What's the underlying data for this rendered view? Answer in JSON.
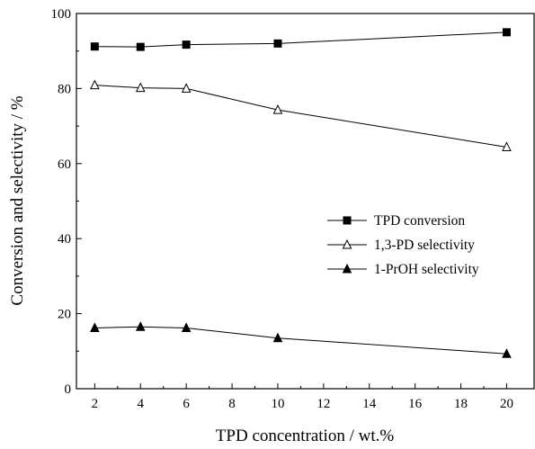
{
  "chart_data": {
    "type": "line",
    "title": "",
    "xlabel": "TPD concentration / wt.%",
    "ylabel": "Conversion and selectivity  / %",
    "xlim": [
      1.2,
      21.2
    ],
    "ylim": [
      0,
      100
    ],
    "x_ticks": [
      2,
      4,
      6,
      8,
      10,
      12,
      14,
      16,
      18,
      20
    ],
    "y_ticks": [
      0,
      20,
      40,
      60,
      80,
      100
    ],
    "grid": false,
    "legend_position": "right-center",
    "series": [
      {
        "name": "TPD conversion",
        "marker": "filled-square",
        "x": [
          2,
          4,
          6,
          10,
          20
        ],
        "y": [
          91.2,
          91.1,
          91.7,
          92.0,
          95.0
        ]
      },
      {
        "name": "1,3-PD selectivity",
        "marker": "open-triangle",
        "x": [
          2,
          4,
          6,
          10,
          20
        ],
        "y": [
          80.9,
          80.2,
          80.0,
          74.3,
          64.4
        ]
      },
      {
        "name": "1-PrOH  selectivity",
        "marker": "filled-triangle",
        "x": [
          2,
          4,
          6,
          10,
          20
        ],
        "y": [
          16.2,
          16.5,
          16.2,
          13.5,
          9.3
        ]
      }
    ]
  }
}
